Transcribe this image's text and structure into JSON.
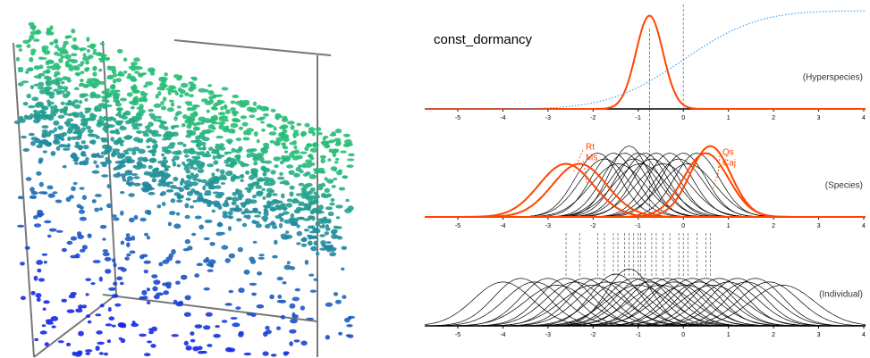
{
  "chart_data": [
    {
      "type": "density",
      "title": "const_dormancy",
      "label": "(Hyperspecies)",
      "xlim": [
        -5.73,
        4.04
      ],
      "xticks": [
        -5,
        -4,
        -3,
        -2,
        -1,
        0,
        1,
        2,
        3,
        4
      ],
      "ylim": [
        0,
        1.4
      ],
      "y2lim": [
        0,
        1
      ],
      "series": [
        {
          "color": "#ff4500",
          "mean": -0.75,
          "sd": 0.3
        },
        {
          "color": "#1e90ff",
          "mean": 0,
          "sd": 1.3,
          "axis": "y2",
          "cumulative": true
        }
      ]
    },
    {
      "type": "density",
      "label": "(Species)",
      "xlim": [
        -5.73,
        4.04
      ],
      "xticks": [
        -5,
        -4,
        -3,
        -2,
        -1,
        0,
        1,
        2,
        3,
        4
      ],
      "ylim": [
        0,
        0.95
      ],
      "series": [
        {
          "color": "#000000",
          "mean": -1.9,
          "sd": 0.5
        },
        {
          "color": "#000000",
          "mean": -1.75,
          "sd": 0.55
        },
        {
          "color": "#000000",
          "mean": -1.55,
          "sd": 0.5
        },
        {
          "color": "#000000",
          "mean": -1.45,
          "sd": 0.6
        },
        {
          "color": "#000000",
          "mean": -1.3,
          "sd": 0.5
        },
        {
          "color": "#000000",
          "mean": -1.2,
          "sd": 0.45
        },
        {
          "color": "#000000",
          "mean": -1.1,
          "sd": 0.55
        },
        {
          "color": "#000000",
          "mean": -1.0,
          "sd": 0.5
        },
        {
          "color": "#000000",
          "mean": -0.95,
          "sd": 0.6
        },
        {
          "color": "#000000",
          "mean": -0.85,
          "sd": 0.5
        },
        {
          "color": "#000000",
          "mean": -0.7,
          "sd": 0.55
        },
        {
          "color": "#000000",
          "mean": -0.6,
          "sd": 0.5
        },
        {
          "color": "#000000",
          "mean": -0.45,
          "sd": 0.6
        },
        {
          "color": "#000000",
          "mean": -0.3,
          "sd": 0.5
        },
        {
          "color": "#000000",
          "mean": -0.1,
          "sd": 0.55
        },
        {
          "color": "#000000",
          "mean": 0.0,
          "sd": 0.5
        },
        {
          "color": "#000000",
          "mean": 0.1,
          "sd": 0.6
        },
        {
          "color": "#000000",
          "mean": 0.3,
          "sd": 0.5
        },
        {
          "color": "#ff4500",
          "name": "Rt",
          "mean": -2.6,
          "sd": 0.6
        },
        {
          "color": "#ff4500",
          "name": "Ms",
          "mean": -2.3,
          "sd": 0.6
        },
        {
          "color": "#ff4500",
          "name": "Qs",
          "mean": 0.6,
          "sd": 0.45
        },
        {
          "color": "#ff4500",
          "name": "Caj",
          "mean": 0.5,
          "sd": 0.5
        }
      ]
    },
    {
      "type": "density",
      "label": "(Individual)",
      "xlim": [
        -5.73,
        4.04
      ],
      "xticks": [
        -5,
        -4,
        -3,
        -2,
        -1,
        0,
        1,
        2,
        3,
        4
      ],
      "ylim": [
        0,
        0.85
      ],
      "series": [
        {
          "color": "#000000",
          "mean": -4.0,
          "sd": 0.65
        },
        {
          "color": "#000000",
          "mean": -3.6,
          "sd": 0.6
        },
        {
          "color": "#000000",
          "mean": -3.3,
          "sd": 0.65
        },
        {
          "color": "#000000",
          "mean": -3.0,
          "sd": 0.6
        },
        {
          "color": "#000000",
          "mean": -2.8,
          "sd": 0.7
        },
        {
          "color": "#000000",
          "mean": -2.6,
          "sd": 0.6
        },
        {
          "color": "#000000",
          "mean": -2.4,
          "sd": 0.65
        },
        {
          "color": "#000000",
          "mean": -2.2,
          "sd": 0.6
        },
        {
          "color": "#000000",
          "mean": -2.0,
          "sd": 0.7
        },
        {
          "color": "#000000",
          "mean": -1.9,
          "sd": 0.6
        },
        {
          "color": "#000000",
          "mean": -1.7,
          "sd": 0.65
        },
        {
          "color": "#000000",
          "mean": -1.5,
          "sd": 0.55
        },
        {
          "color": "#000000",
          "mean": -1.4,
          "sd": 0.65
        },
        {
          "color": "#000000",
          "mean": -1.2,
          "sd": 0.5
        },
        {
          "color": "#000000",
          "mean": -1.1,
          "sd": 0.6
        },
        {
          "color": "#000000",
          "mean": -1.0,
          "sd": 0.7
        },
        {
          "color": "#000000",
          "mean": -0.9,
          "sd": 0.6
        },
        {
          "color": "#000000",
          "mean": -0.75,
          "sd": 0.65
        },
        {
          "color": "#000000",
          "mean": -0.6,
          "sd": 0.6
        },
        {
          "color": "#000000",
          "mean": -0.5,
          "sd": 0.7
        },
        {
          "color": "#000000",
          "mean": -0.35,
          "sd": 0.6
        },
        {
          "color": "#000000",
          "mean": -0.2,
          "sd": 0.65
        },
        {
          "color": "#000000",
          "mean": -0.1,
          "sd": 0.6
        },
        {
          "color": "#000000",
          "mean": 0.05,
          "sd": 0.7
        },
        {
          "color": "#000000",
          "mean": 0.2,
          "sd": 0.6
        },
        {
          "color": "#000000",
          "mean": 0.35,
          "sd": 0.65
        },
        {
          "color": "#000000",
          "mean": 0.5,
          "sd": 0.6
        },
        {
          "color": "#000000",
          "mean": 0.65,
          "sd": 0.7
        },
        {
          "color": "#000000",
          "mean": 0.8,
          "sd": 0.6
        },
        {
          "color": "#000000",
          "mean": 1.0,
          "sd": 0.65
        },
        {
          "color": "#000000",
          "mean": 1.2,
          "sd": 0.6
        },
        {
          "color": "#000000",
          "mean": 1.4,
          "sd": 0.65
        },
        {
          "color": "#000000",
          "mean": 1.6,
          "sd": 0.6
        },
        {
          "color": "#000000",
          "mean": 1.9,
          "sd": 0.65
        },
        {
          "color": "#000000",
          "mean": 2.2,
          "sd": 0.7
        }
      ]
    }
  ]
}
